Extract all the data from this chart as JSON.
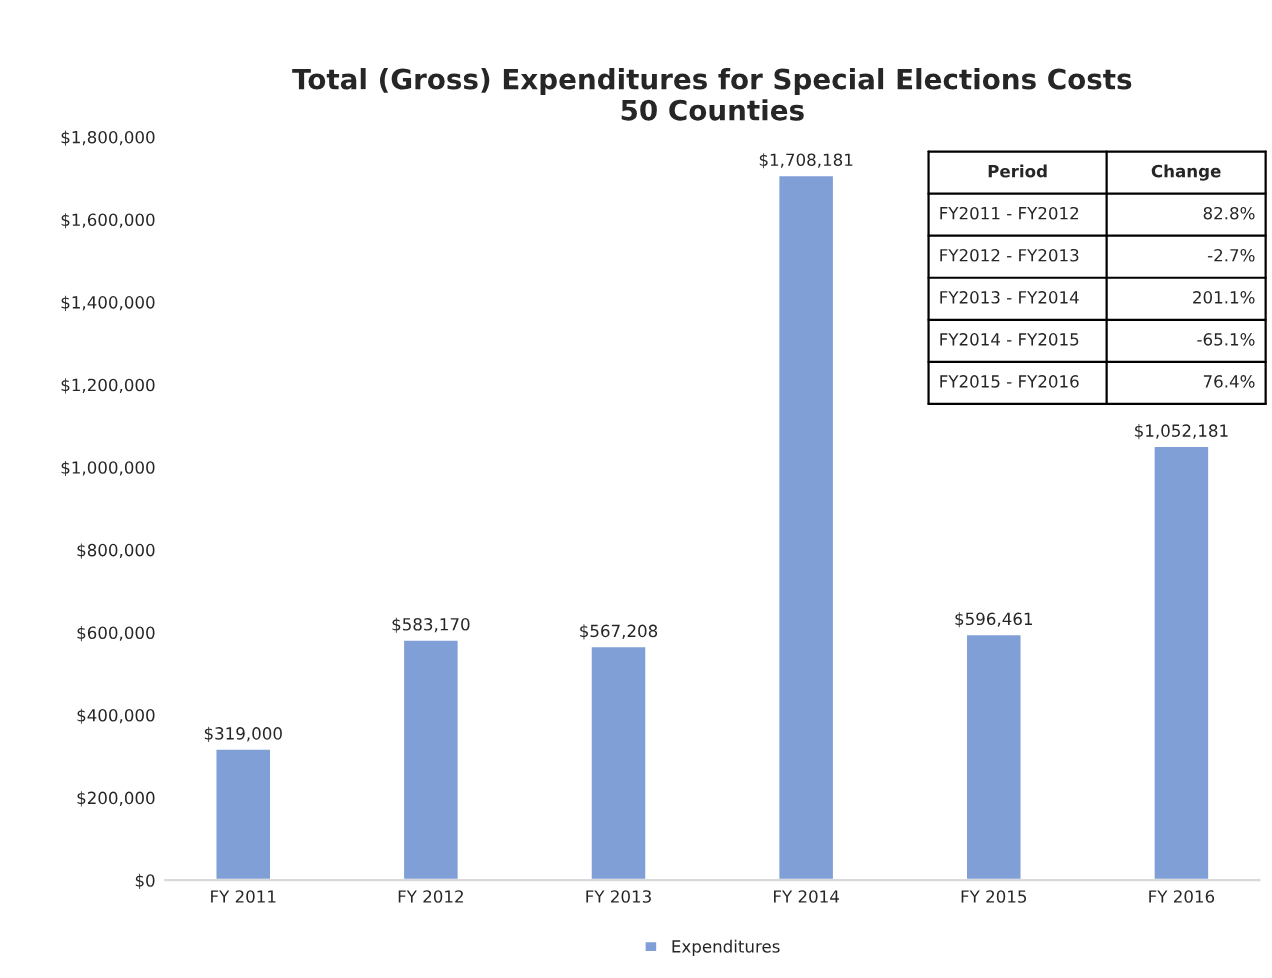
{
  "chart_data": {
    "type": "bar",
    "title": "Total (Gross) Expenditures for Special Elections Costs\n50 Counties",
    "categories": [
      "FY 2011",
      "FY 2012",
      "FY 2013",
      "FY 2014",
      "FY 2015",
      "FY 2016"
    ],
    "series": [
      {
        "name": "Expenditures",
        "color": "#7f9fd6",
        "values": [
          319000,
          583170,
          567208,
          1708181,
          596461,
          1052181
        ],
        "value_labels": [
          "$319,000",
          "$583,170",
          "$567,208",
          "$1,708,181",
          "$596,461",
          "$1,052,181"
        ]
      }
    ],
    "ylim": [
      0,
      1800000
    ],
    "yticks": [
      {
        "value": 0,
        "label": "$0"
      },
      {
        "value": 200000,
        "label": "$200,000"
      },
      {
        "value": 400000,
        "label": "$400,000"
      },
      {
        "value": 600000,
        "label": "$600,000"
      },
      {
        "value": 800000,
        "label": "$800,000"
      },
      {
        "value": 1000000,
        "label": "$1,000,000"
      },
      {
        "value": 1200000,
        "label": "$1,200,000"
      },
      {
        "value": 1400000,
        "label": "$1,400,000"
      },
      {
        "value": 1600000,
        "label": "$1,600,000"
      },
      {
        "value": 1800000,
        "label": "$1,800,000"
      }
    ],
    "annotations": [
      "Period",
      "Change",
      "FY2011 - FY2012",
      "82.8%",
      "FY2012 - FY2013",
      "-2.7%",
      "FY2013 - FY2014",
      "201.1%",
      "FY2014 - FY2015",
      "-65.1%",
      "FY2015 - FY2016",
      "76.4%"
    ],
    "grid": false,
    "legend": "bottom"
  }
}
